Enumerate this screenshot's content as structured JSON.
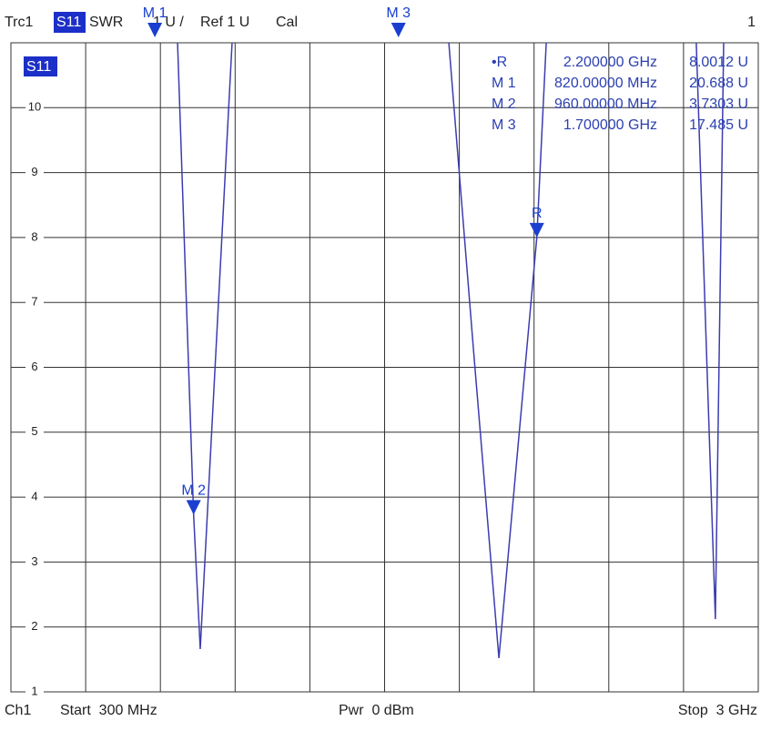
{
  "chart_data": {
    "type": "line",
    "header": {
      "trace": "Trc1",
      "param": "S11",
      "format": "SWR",
      "scale": "1 U /",
      "ref": "Ref 1 U",
      "cal": "Cal",
      "channel_no": "1"
    },
    "footer": {
      "channel": "Ch1",
      "start": "Start  300 MHz",
      "power": "Pwr  0 dBm",
      "stop": "Stop  3 GHz"
    },
    "trace_label": "S11",
    "xlim": [
      300,
      3000
    ],
    "xticks": [
      300,
      570,
      840,
      1110,
      1380,
      1650,
      1920,
      2190,
      2460,
      2730,
      3000
    ],
    "ylim": [
      1,
      11
    ],
    "yticks": [
      1,
      2,
      3,
      4,
      5,
      6,
      7,
      8,
      9,
      10
    ],
    "grid": true,
    "series": [
      {
        "name": "S11",
        "color": "#3c3cb0",
        "x": [
          902,
          960,
          984,
          1040,
          1099,
          null,
          1882,
          1970,
          2063,
          2200,
          2234,
          null,
          2776,
          2845,
          2875
        ],
        "values": [
          11,
          3.7303,
          1.66,
          6.2,
          11,
          null,
          11,
          6.33,
          1.52,
          8.0012,
          11,
          null,
          11,
          2.12,
          11
        ]
      }
    ],
    "markers": [
      {
        "label": "M 1",
        "x": 820
      },
      {
        "label": "M 3",
        "x": 1700
      },
      {
        "label": "M 2",
        "x": 960,
        "y": 3.7303
      },
      {
        "label": "R",
        "x": 2200,
        "y": 8.0012
      }
    ],
    "marker_color": "#1a3fd0",
    "marker_table": [
      [
        "•R",
        "2.200000 GHz",
        "8.0012 U"
      ],
      [
        "M 1",
        "820.00000 MHz",
        "20.688 U"
      ],
      [
        "M 2",
        "960.00000 MHz",
        "3.7303 U"
      ],
      [
        "M 3",
        "1.700000 GHz",
        "17.485 U"
      ]
    ]
  }
}
